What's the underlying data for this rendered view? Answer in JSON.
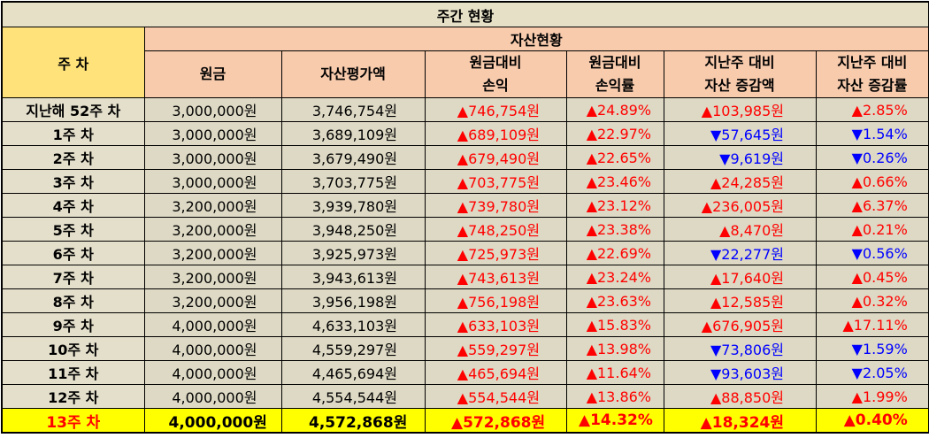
{
  "title": "주간 현황",
  "headers": {
    "week": "주 차",
    "group": "자산현황",
    "principal": "원금",
    "asset_value": "자산평가액",
    "pl_line1": "원금대비",
    "pl_line2": "손익",
    "plrate_line1": "원금대비",
    "plrate_line2": "손익률",
    "wow_amt_line1": "지난주 대비",
    "wow_amt_line2": "자산 증감액",
    "wow_rate_line1": "지난주 대비",
    "wow_rate_line2": "자산 증감률"
  },
  "rows": [
    {
      "week": "지난해 52주 차",
      "principal": "3,000,000원",
      "asset": "3,746,754원",
      "pl": "▲746,754원",
      "pl_dir": "up",
      "plrate": "▲24.89%",
      "plrate_dir": "up",
      "wow_amt": "▲103,985원",
      "wow_amt_dir": "up",
      "wow_rate": "▲2.85%",
      "wow_rate_dir": "up"
    },
    {
      "week": "1주 차",
      "principal": "3,000,000원",
      "asset": "3,689,109원",
      "pl": "▲689,109원",
      "pl_dir": "up",
      "plrate": "▲22.97%",
      "plrate_dir": "up",
      "wow_amt": "▼57,645원",
      "wow_amt_dir": "down",
      "wow_rate": "▼1.54%",
      "wow_rate_dir": "down"
    },
    {
      "week": "2주 차",
      "principal": "3,000,000원",
      "asset": "3,679,490원",
      "pl": "▲679,490원",
      "pl_dir": "up",
      "plrate": "▲22.65%",
      "plrate_dir": "up",
      "wow_amt": "▼9,619원",
      "wow_amt_dir": "down",
      "wow_rate": "▼0.26%",
      "wow_rate_dir": "down"
    },
    {
      "week": "3주 차",
      "principal": "3,000,000원",
      "asset": "3,703,775원",
      "pl": "▲703,775원",
      "pl_dir": "up",
      "plrate": "▲23.46%",
      "plrate_dir": "up",
      "wow_amt": "▲24,285원",
      "wow_amt_dir": "up",
      "wow_rate": "▲0.66%",
      "wow_rate_dir": "up"
    },
    {
      "week": "4주 차",
      "principal": "3,200,000원",
      "asset": "3,939,780원",
      "pl": "▲739,780원",
      "pl_dir": "up",
      "plrate": "▲23.12%",
      "plrate_dir": "up",
      "wow_amt": "▲236,005원",
      "wow_amt_dir": "up",
      "wow_rate": "▲6.37%",
      "wow_rate_dir": "up"
    },
    {
      "week": "5주 차",
      "principal": "3,200,000원",
      "asset": "3,948,250원",
      "pl": "▲748,250원",
      "pl_dir": "up",
      "plrate": "▲23.38%",
      "plrate_dir": "up",
      "wow_amt": "▲8,470원",
      "wow_amt_dir": "up",
      "wow_rate": "▲0.21%",
      "wow_rate_dir": "up"
    },
    {
      "week": "6주 차",
      "principal": "3,200,000원",
      "asset": "3,925,973원",
      "pl": "▲725,973원",
      "pl_dir": "up",
      "plrate": "▲22.69%",
      "plrate_dir": "up",
      "wow_amt": "▼22,277원",
      "wow_amt_dir": "down",
      "wow_rate": "▼0.56%",
      "wow_rate_dir": "down"
    },
    {
      "week": "7주 차",
      "principal": "3,200,000원",
      "asset": "3,943,613원",
      "pl": "▲743,613원",
      "pl_dir": "up",
      "plrate": "▲23.24%",
      "plrate_dir": "up",
      "wow_amt": "▲17,640원",
      "wow_amt_dir": "up",
      "wow_rate": "▲0.45%",
      "wow_rate_dir": "up"
    },
    {
      "week": "8주 차",
      "principal": "3,200,000원",
      "asset": "3,956,198원",
      "pl": "▲756,198원",
      "pl_dir": "up",
      "plrate": "▲23.63%",
      "plrate_dir": "up",
      "wow_amt": "▲12,585원",
      "wow_amt_dir": "up",
      "wow_rate": "▲0.32%",
      "wow_rate_dir": "up"
    },
    {
      "week": "9주 차",
      "principal": "4,000,000원",
      "asset": "4,633,103원",
      "pl": "▲633,103원",
      "pl_dir": "up",
      "plrate": "▲15.83%",
      "plrate_dir": "up",
      "wow_amt": "▲676,905원",
      "wow_amt_dir": "up",
      "wow_rate": "▲17.11%",
      "wow_rate_dir": "up"
    },
    {
      "week": "10주 차",
      "principal": "4,000,000원",
      "asset": "4,559,297원",
      "pl": "▲559,297원",
      "pl_dir": "up",
      "plrate": "▲13.98%",
      "plrate_dir": "up",
      "wow_amt": "▼73,806원",
      "wow_amt_dir": "down",
      "wow_rate": "▼1.59%",
      "wow_rate_dir": "down"
    },
    {
      "week": "11주 차",
      "principal": "4,000,000원",
      "asset": "4,465,694원",
      "pl": "▲465,694원",
      "pl_dir": "up",
      "plrate": "▲11.64%",
      "plrate_dir": "up",
      "wow_amt": "▼93,603원",
      "wow_amt_dir": "down",
      "wow_rate": "▼2.05%",
      "wow_rate_dir": "down"
    },
    {
      "week": "12주 차",
      "principal": "4,000,000원",
      "asset": "4,554,544원",
      "pl": "▲554,544원",
      "pl_dir": "up",
      "plrate": "▲13.86%",
      "plrate_dir": "up",
      "wow_amt": "▲88,850원",
      "wow_amt_dir": "up",
      "wow_rate": "▲1.99%",
      "wow_rate_dir": "up"
    },
    {
      "week": "13주 차",
      "principal": "4,000,000원",
      "asset": "4,572,868원",
      "pl": "▲572,868원",
      "pl_dir": "up",
      "plrate": "▲14.32%",
      "plrate_dir": "up",
      "wow_amt": "▲18,324원",
      "wow_amt_dir": "up",
      "wow_rate": "▲0.40%",
      "wow_rate_dir": "up"
    }
  ],
  "colors": {
    "up": "#ff0000",
    "down": "#0000ff",
    "title_bg": "#e6e0c6",
    "header_bg": "#f8cbad",
    "week_header_bg": "#ffe37a",
    "row_bg": "#ddd9c4",
    "highlight_bg": "#ffff00"
  }
}
